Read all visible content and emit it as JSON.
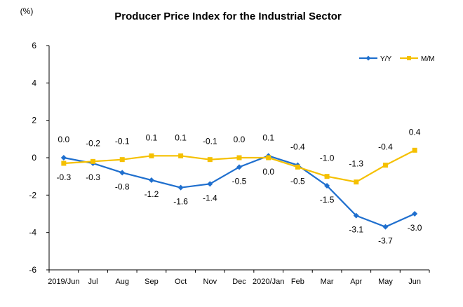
{
  "chart_data": {
    "type": "line",
    "title": "Producer Price Index for the Industrial Sector",
    "ylabel": "(%)",
    "xlabel": "",
    "ylim": [
      -6,
      6
    ],
    "yticks": [
      -6,
      -4,
      -2,
      0,
      2,
      4,
      6
    ],
    "categories": [
      "2019/Jun",
      "Jul",
      "Aug",
      "Sep",
      "Oct",
      "Nov",
      "Dec",
      "2020/Jan",
      "Feb",
      "Mar",
      "Apr",
      "May",
      "Jun"
    ],
    "grid": false,
    "legend_position": "top-right",
    "series": [
      {
        "name": "Y/Y",
        "color": "#1f6fce",
        "marker": "diamond",
        "values": [
          0.0,
          -0.3,
          -0.8,
          -1.2,
          -1.6,
          -1.4,
          -0.5,
          0.1,
          -0.4,
          -1.5,
          -3.1,
          -3.7,
          -3.0
        ],
        "labels": [
          "0.0",
          "-0.3",
          "-0.8",
          "-1.2",
          "-1.6",
          "-1.4",
          "-0.5",
          "0.1",
          "-0.4",
          "-1.5",
          "-3.1",
          "-3.7",
          "-3.0"
        ]
      },
      {
        "name": "M/M",
        "color": "#f5c000",
        "marker": "square",
        "values": [
          -0.3,
          -0.2,
          -0.1,
          0.1,
          0.1,
          -0.1,
          0.0,
          0.0,
          -0.5,
          -1.0,
          -1.3,
          -0.4,
          0.4
        ],
        "labels": [
          "-0.3",
          "-0.2",
          "-0.1",
          "0.1",
          "0.1",
          "-0.1",
          "0.0",
          "0.0",
          "-0.5",
          "-1.0",
          "-1.3",
          "-0.4",
          "0.4"
        ]
      }
    ]
  }
}
